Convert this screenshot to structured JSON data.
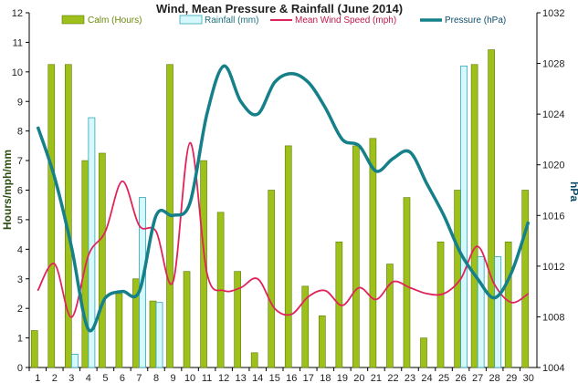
{
  "chart_data": {
    "type": "bar",
    "title": "Wind, Mean Pressure & Rainfall (June 2014)",
    "ylabel": "Hours/mph/mm",
    "ylabel_right": "hPa",
    "ylim": [
      0,
      12
    ],
    "ylim_right": [
      1004,
      1032
    ],
    "grid": false,
    "legend_position": "top",
    "categories": [
      "1",
      "2",
      "3",
      "4",
      "5",
      "6",
      "7",
      "8",
      "9",
      "10",
      "11",
      "12",
      "13",
      "14",
      "15",
      "16",
      "17",
      "18",
      "19",
      "20",
      "21",
      "22",
      "23",
      "24",
      "25",
      "26",
      "27",
      "28",
      "29",
      "30"
    ],
    "yticks_left": [
      "0",
      "1",
      "2",
      "3",
      "4",
      "5",
      "6",
      "7",
      "8",
      "9",
      "10",
      "11",
      "12"
    ],
    "yticks_right": [
      "1004",
      "1008",
      "1012",
      "1016",
      "1020",
      "1024",
      "1028",
      "1032"
    ],
    "colors": {
      "calm": "#9dc01a",
      "calm_border": "#5f7a0a",
      "rain": "#d7f8fc",
      "rain_border": "#2fa7b8",
      "wind": "#e0245a",
      "pressure": "#16808a",
      "title": "#1f1f1f",
      "left_axis_text": "#2d4d12",
      "right_axis_text": "#0e4d6a"
    },
    "series": [
      {
        "name": "Calm (Hours)",
        "kind": "bar",
        "axis": "left",
        "values": [
          1.25,
          10.25,
          10.25,
          7.0,
          7.25,
          2.5,
          3.0,
          2.25,
          10.25,
          3.25,
          7.0,
          5.25,
          3.25,
          0.5,
          6.0,
          7.5,
          2.75,
          1.75,
          4.25,
          7.5,
          7.75,
          3.5,
          5.75,
          1.0,
          4.25,
          6.0,
          10.25,
          10.75,
          4.25,
          6.0
        ]
      },
      {
        "name": "Rainfall (mm)",
        "kind": "bar",
        "axis": "left",
        "values": [
          0,
          0,
          0.45,
          8.45,
          0,
          0,
          5.75,
          2.2,
          0,
          0,
          0,
          0,
          0,
          0,
          0,
          0,
          0,
          0,
          0,
          0,
          0,
          0,
          0,
          0,
          0,
          10.2,
          3.75,
          3.75,
          0,
          0
        ]
      },
      {
        "name": "Mean Wind Speed (mph)",
        "kind": "line",
        "axis": "left",
        "values": [
          2.6,
          3.5,
          1.7,
          3.8,
          4.6,
          6.3,
          4.8,
          4.6,
          2.9,
          7.6,
          3.2,
          2.6,
          2.7,
          3.0,
          2.0,
          1.8,
          2.4,
          2.6,
          2.1,
          2.7,
          2.3,
          2.9,
          2.7,
          2.5,
          2.5,
          3.0,
          4.1,
          2.8,
          2.2,
          2.5
        ]
      },
      {
        "name": "Pressure (hPa)",
        "kind": "line",
        "axis": "right",
        "values": [
          1023.0,
          1019.0,
          1013.5,
          1007.0,
          1009.5,
          1010.0,
          1010.0,
          1016.0,
          1016.0,
          1017.0,
          1024.0,
          1027.8,
          1025.0,
          1024.0,
          1026.5,
          1027.2,
          1026.5,
          1024.5,
          1022.0,
          1021.5,
          1019.5,
          1020.5,
          1021.0,
          1018.5,
          1016.0,
          1013.0,
          1011.0,
          1009.5,
          1011.5,
          1015.5
        ]
      }
    ]
  }
}
